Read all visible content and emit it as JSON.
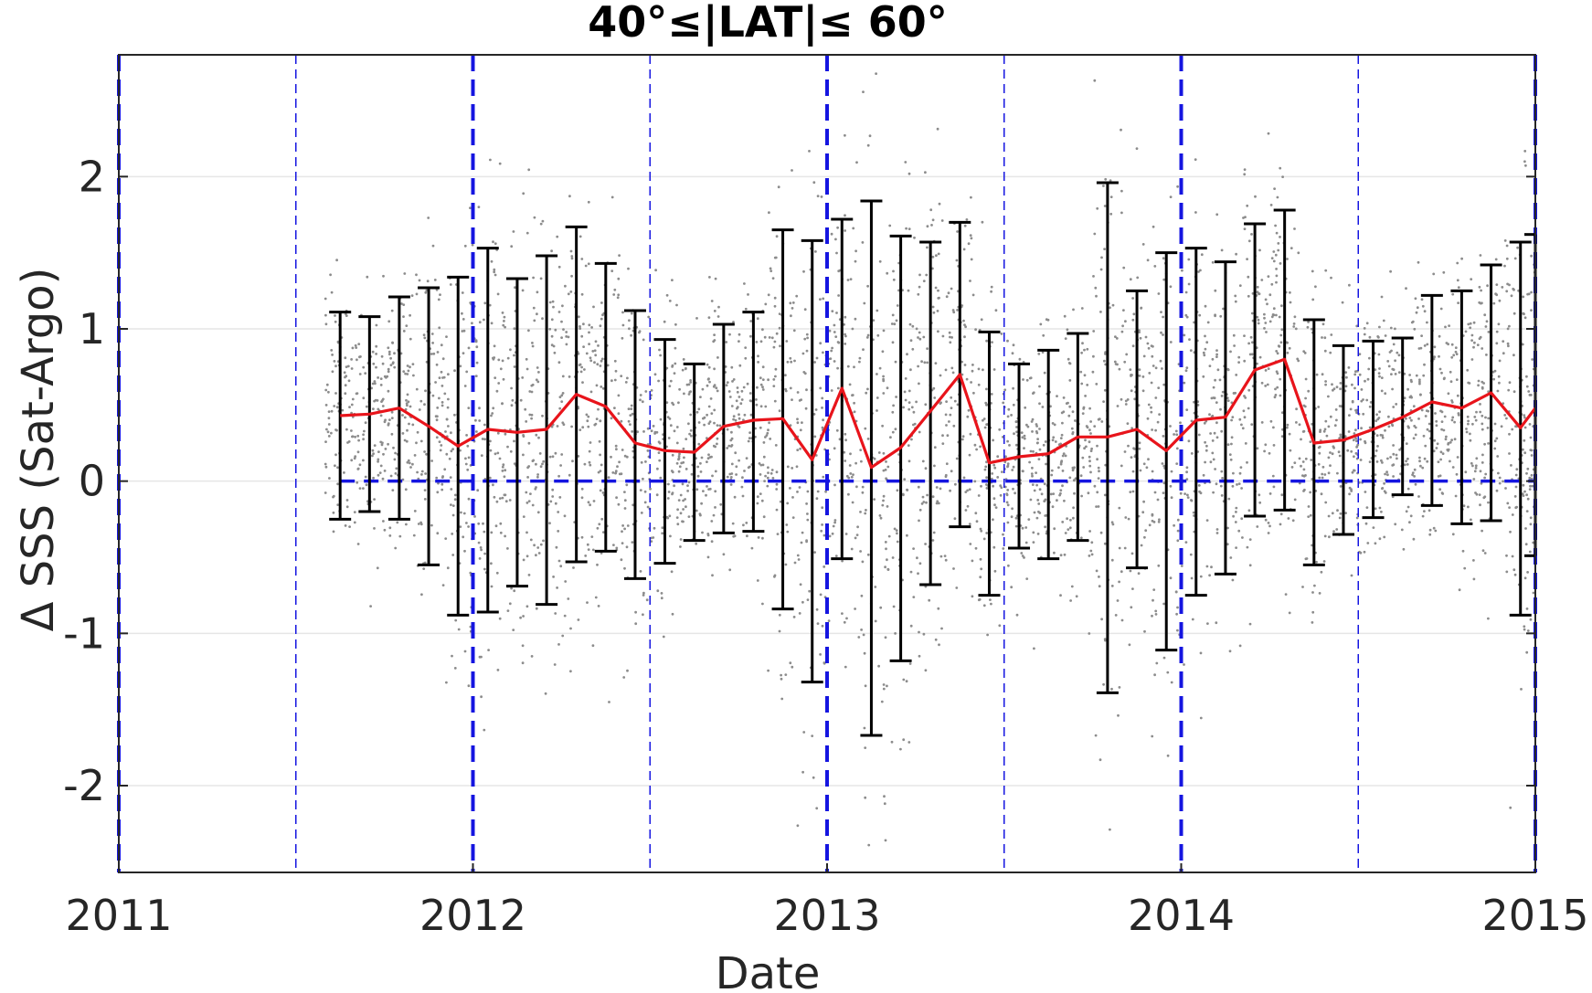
{
  "chart_data": {
    "type": "scatter",
    "title": "40°≤|LAT|≤ 60°",
    "xlabel": "Date",
    "ylabel": "Δ SSS (Sat-Argo)",
    "xlim": [
      2011,
      2015
    ],
    "ylim": [
      -2.57,
      2.8
    ],
    "x_ticks": [
      2011,
      2012,
      2013,
      2014,
      2015
    ],
    "y_ticks": [
      -2,
      -1,
      0,
      1,
      2
    ],
    "grid": true,
    "colors": {
      "mean_line": "#e8141b",
      "error_bars": "#000000",
      "reference_lines": "#1515e0",
      "scatter_points": "#8c8c8c",
      "grid": "#e6e6e6"
    },
    "zero_line": 0,
    "major_vlines": [
      2011,
      2012,
      2013,
      2014,
      2015
    ],
    "minor_vlines": [
      2011.5,
      2012.5,
      2013.5,
      2014.5
    ],
    "monthly": {
      "x": [
        2011.625,
        2011.708,
        2011.792,
        2011.875,
        2011.958,
        2012.042,
        2012.125,
        2012.208,
        2012.292,
        2012.375,
        2012.458,
        2012.542,
        2012.625,
        2012.708,
        2012.792,
        2012.875,
        2012.958,
        2013.042,
        2013.125,
        2013.208,
        2013.292,
        2013.375,
        2013.458,
        2013.542,
        2013.625,
        2013.708,
        2013.792,
        2013.875,
        2013.958,
        2014.042,
        2014.125,
        2014.208,
        2014.292,
        2014.375,
        2014.458,
        2014.542,
        2014.625,
        2014.708,
        2014.792,
        2014.875,
        2014.958,
        2015.0
      ],
      "mean": [
        0.43,
        0.44,
        0.48,
        0.36,
        0.23,
        0.34,
        0.32,
        0.34,
        0.57,
        0.49,
        0.25,
        0.2,
        0.19,
        0.36,
        0.4,
        0.41,
        0.14,
        0.61,
        0.09,
        0.22,
        0.46,
        0.7,
        0.12,
        0.16,
        0.18,
        0.29,
        0.29,
        0.34,
        0.2,
        0.4,
        0.42,
        0.73,
        0.8,
        0.25,
        0.27,
        0.34,
        0.42,
        0.52,
        0.48,
        0.58,
        0.35,
        0.48
      ],
      "upper": [
        1.11,
        1.08,
        1.21,
        1.27,
        1.34,
        1.53,
        1.33,
        1.48,
        1.67,
        1.43,
        1.12,
        0.93,
        0.77,
        1.03,
        1.11,
        1.65,
        1.58,
        1.72,
        1.84,
        1.61,
        1.57,
        1.7,
        0.98,
        0.77,
        0.86,
        0.97,
        1.96,
        1.25,
        1.5,
        1.53,
        1.44,
        1.69,
        1.78,
        1.06,
        0.89,
        0.92,
        0.94,
        1.22,
        1.25,
        1.42,
        1.57,
        1.62
      ],
      "lower": [
        -0.25,
        -0.2,
        -0.25,
        -0.55,
        -0.88,
        -0.86,
        -0.69,
        -0.81,
        -0.53,
        -0.46,
        -0.64,
        -0.54,
        -0.39,
        -0.34,
        -0.33,
        -0.84,
        -1.32,
        -0.51,
        -1.67,
        -1.18,
        -0.68,
        -0.3,
        -0.75,
        -0.44,
        -0.51,
        -0.39,
        -1.39,
        -0.57,
        -1.11,
        -0.75,
        -0.61,
        -0.23,
        -0.19,
        -0.55,
        -0.35,
        -0.24,
        -0.09,
        -0.16,
        -0.28,
        -0.26,
        -0.88,
        -0.49
      ]
    }
  }
}
